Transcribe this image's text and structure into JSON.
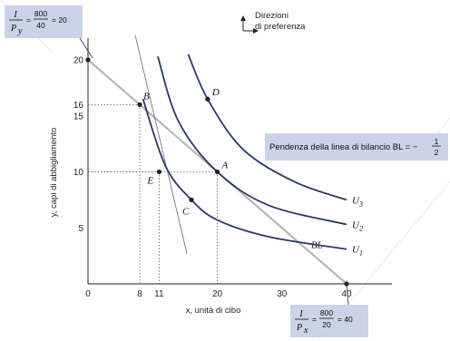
{
  "chart_data": {
    "type": "line",
    "xlabel": "x, unità di cibo",
    "ylabel": "y, capi di abbigliamento",
    "x_ticks": [
      0,
      8,
      11,
      20,
      30,
      40
    ],
    "y_ticks": [
      5,
      10,
      15,
      16,
      20
    ],
    "budget_line": {
      "name": "BL",
      "points": [
        [
          0,
          20
        ],
        [
          40,
          0
        ]
      ]
    },
    "series": [
      {
        "name": "U1",
        "points": [
          [
            8.5,
            16.5
          ],
          [
            12,
            10.5
          ],
          [
            16,
            7.5
          ],
          [
            20,
            5.7
          ],
          [
            28,
            4.2
          ],
          [
            40,
            3.1
          ]
        ]
      },
      {
        "name": "U2",
        "points": [
          [
            10.8,
            20.3
          ],
          [
            14,
            14.5
          ],
          [
            20,
            10
          ],
          [
            28,
            7
          ],
          [
            40,
            5.3
          ]
        ]
      },
      {
        "name": "U3",
        "points": [
          [
            15.5,
            20.5
          ],
          [
            18.5,
            16.5
          ],
          [
            24,
            12
          ],
          [
            32,
            9.1
          ],
          [
            40,
            7.5
          ]
        ]
      }
    ],
    "steep_line_points": [
      [
        7.3,
        22.2
      ],
      [
        15.3,
        2.7
      ]
    ],
    "points": [
      {
        "label": "A",
        "x": 20,
        "y": 10
      },
      {
        "label": "B",
        "x": 8,
        "y": 16
      },
      {
        "label": "C",
        "x": 16,
        "y": 7.5
      },
      {
        "label": "D",
        "x": 18.5,
        "y": 16.5
      },
      {
        "label": "E",
        "x": 11,
        "y": 10
      }
    ],
    "xlim": [
      0,
      40
    ],
    "ylim": [
      0,
      20
    ],
    "legend_text": "Direzioni di preferenza",
    "legend_lines": [
      "Direzioni",
      "di preferenza"
    ],
    "annotation": {
      "text": "Pendenza della linea di bilancio BL = −",
      "frac_num": "1",
      "frac_den": "2"
    },
    "y_intercept_box": {
      "lhs_num": "I",
      "lhs_den": "P",
      "lhs_sub": "y",
      "num": "800",
      "den": "40",
      "result": "= 20"
    },
    "x_intercept_box": {
      "lhs_num": "I",
      "lhs_den": "P",
      "lhs_sub": "x",
      "num": "800",
      "den": "20",
      "result": "= 40"
    }
  },
  "colors": {
    "curves": "#2b3a66",
    "budget_line": "#b8b8b8",
    "callout_bg": "#c9d4e8",
    "guides": "#555555"
  }
}
